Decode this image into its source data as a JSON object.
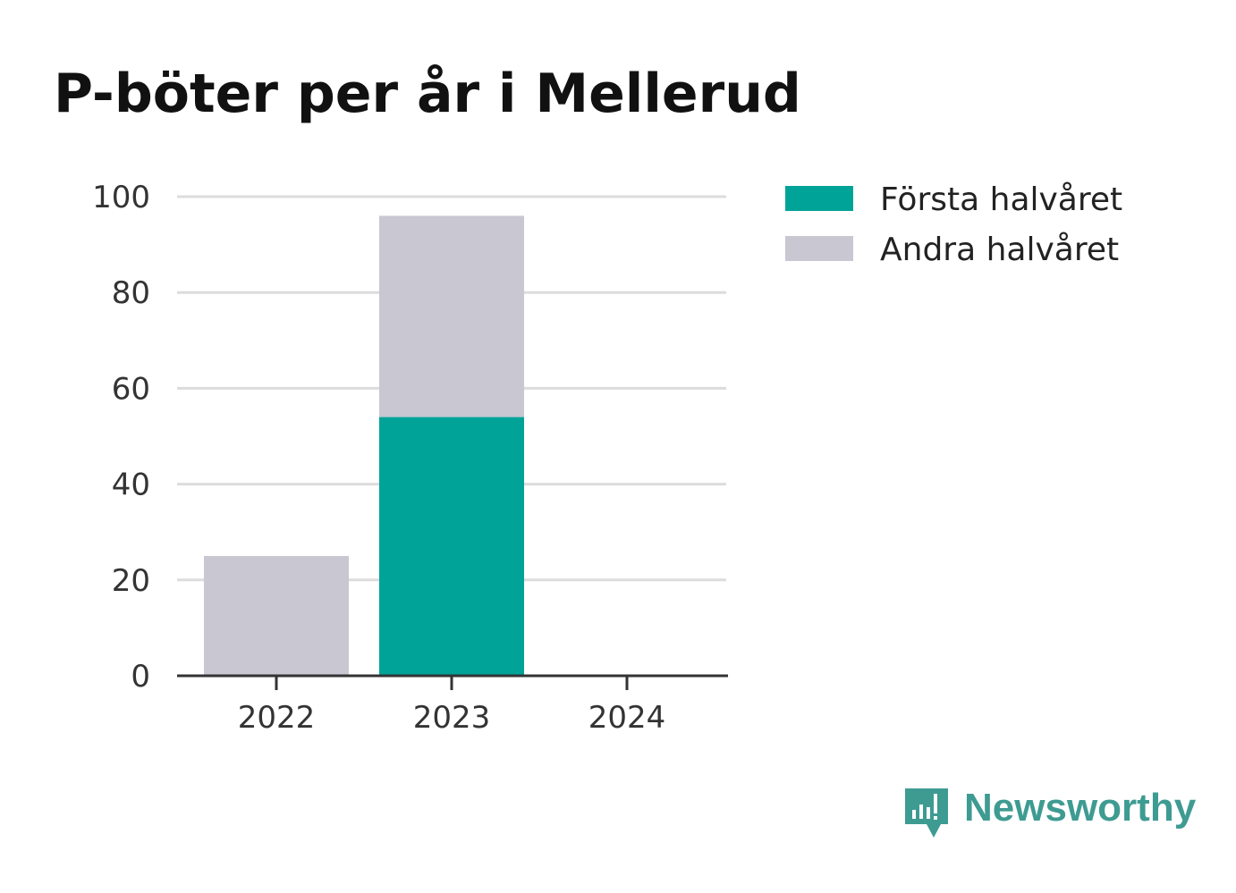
{
  "chart_data": {
    "type": "bar",
    "stacked": true,
    "title": "P-böter per år i Mellerud",
    "categories": [
      "2022",
      "2023",
      "2024"
    ],
    "series": [
      {
        "name": "Första halvåret",
        "values": [
          0,
          54,
          0
        ],
        "color": "#00a398"
      },
      {
        "name": "Andra halvåret",
        "values": [
          25,
          42,
          0
        ],
        "color": "#c8c7d2"
      }
    ],
    "y_ticks": [
      "0",
      "20",
      "40",
      "60",
      "80",
      "100"
    ],
    "ylim": [
      0,
      100
    ],
    "grid": true,
    "legend_position": "top-right",
    "xlabel": "",
    "ylabel": ""
  },
  "branding": {
    "name": "Newsworthy",
    "color": "#3e9b92",
    "icon": "newsworthy-logo-icon"
  }
}
